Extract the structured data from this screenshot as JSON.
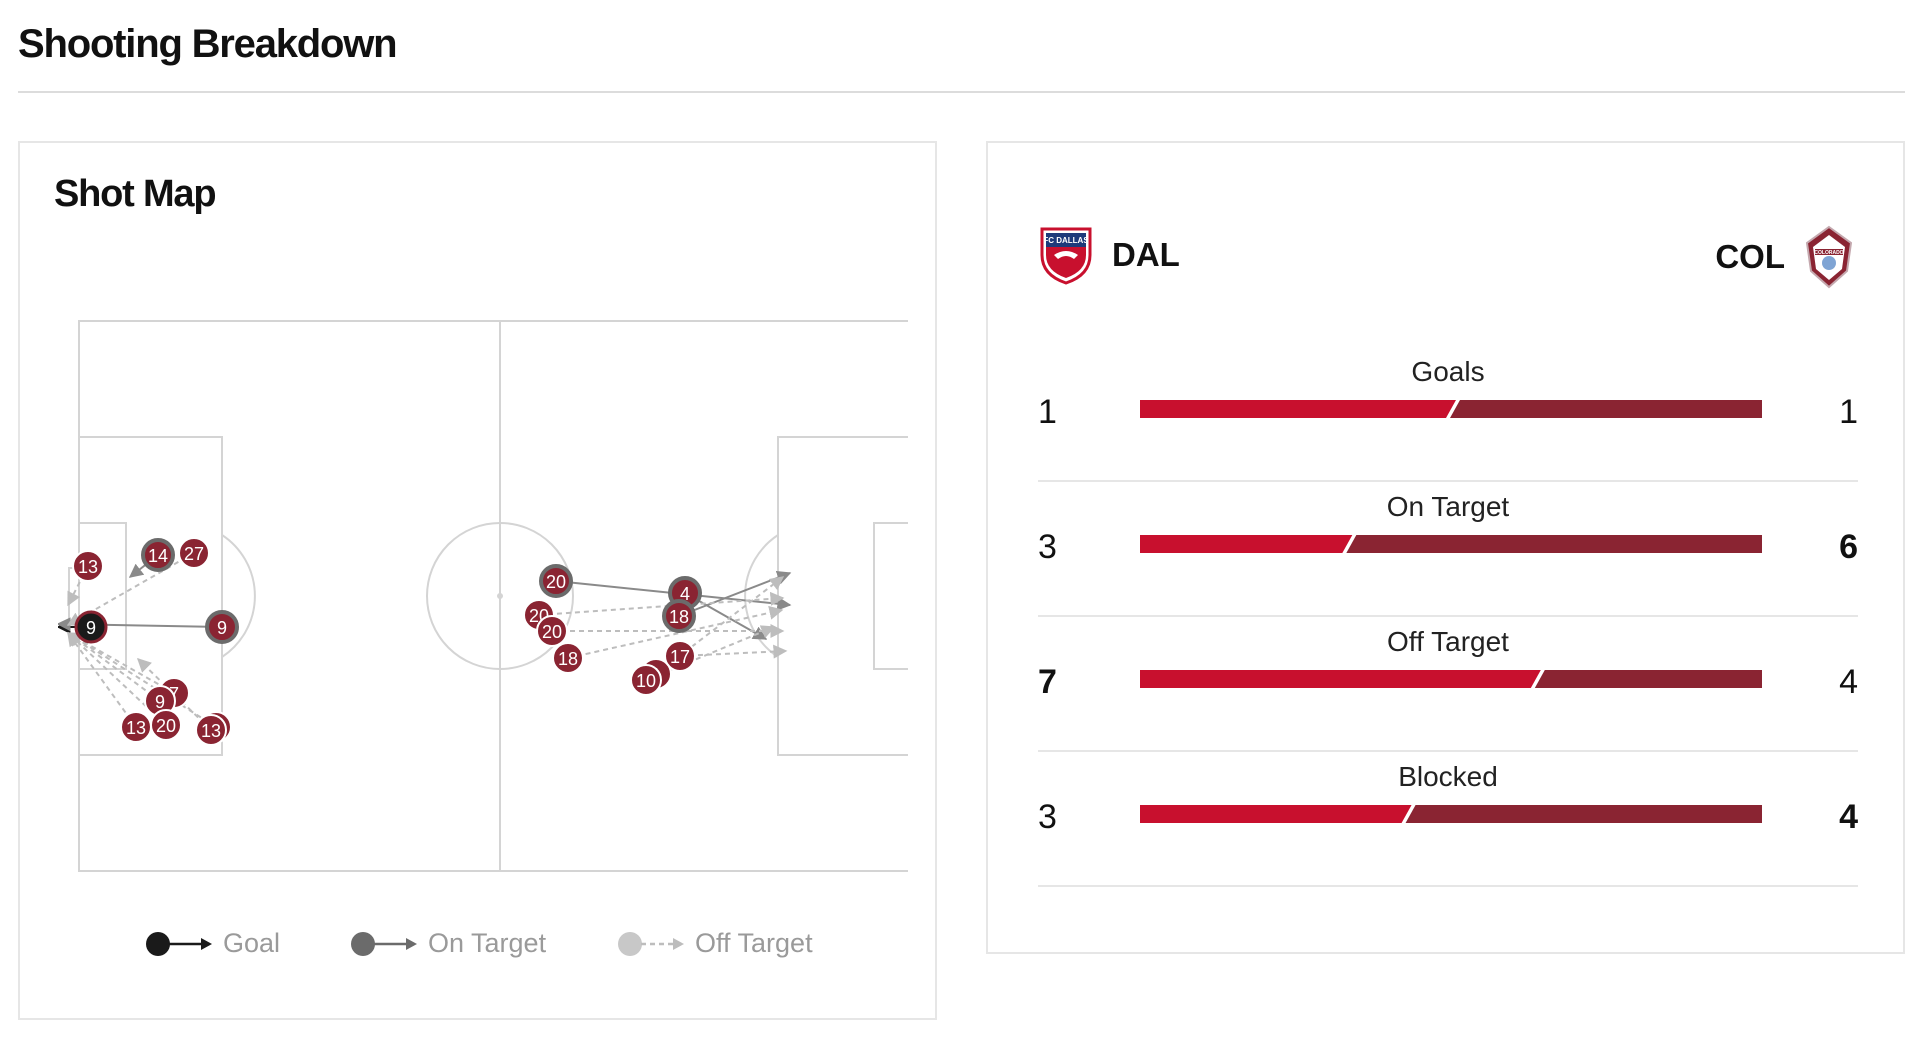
{
  "page": {
    "title": "Shooting Breakdown"
  },
  "shot_map": {
    "title": "Shot Map",
    "shots": [
      {
        "n": "9",
        "type": "goal"
      },
      {
        "n": "9",
        "type": "on"
      },
      {
        "n": "14",
        "type": "on"
      },
      {
        "n": "27",
        "type": "off"
      },
      {
        "n": "13",
        "type": "off"
      },
      {
        "n": "7",
        "type": "off"
      },
      {
        "n": "9",
        "type": "off"
      },
      {
        "n": "13",
        "type": "off"
      },
      {
        "n": "20",
        "type": "off"
      },
      {
        "n": "13",
        "type": "off"
      },
      {
        "n": "13",
        "type": "off"
      },
      {
        "n": "20",
        "type": "on"
      },
      {
        "n": "4",
        "type": "on"
      },
      {
        "n": "18",
        "type": "on"
      },
      {
        "n": "20",
        "type": "off"
      },
      {
        "n": "20",
        "type": "off"
      },
      {
        "n": "18",
        "type": "off"
      },
      {
        "n": "17",
        "type": "off"
      },
      {
        "n": "1",
        "type": "off"
      },
      {
        "n": "10",
        "type": "off"
      }
    ],
    "legend": {
      "goal": "Goal",
      "on_target": "On Target",
      "off_target": "Off Target"
    }
  },
  "teams": {
    "home": {
      "abbr": "DAL",
      "crest_text": "FC DALLAS"
    },
    "away": {
      "abbr": "COL",
      "crest_text": "COLORADO"
    }
  },
  "colors": {
    "home": "#c8102e",
    "away": "#8a2432",
    "shot_fill": "#8a2432",
    "goal": "#1a1a1a",
    "on_target": "#6b6b6b",
    "off_target": "#bdbdbd"
  },
  "stats": [
    {
      "label": "Goals",
      "home": 1,
      "away": 1,
      "home_bold": false,
      "away_bold": false
    },
    {
      "label": "On Target",
      "home": 3,
      "away": 6,
      "home_bold": false,
      "away_bold": true
    },
    {
      "label": "Off Target",
      "home": 7,
      "away": 4,
      "home_bold": true,
      "away_bold": false
    },
    {
      "label": "Blocked",
      "home": 3,
      "away": 4,
      "home_bold": false,
      "away_bold": true
    }
  ]
}
